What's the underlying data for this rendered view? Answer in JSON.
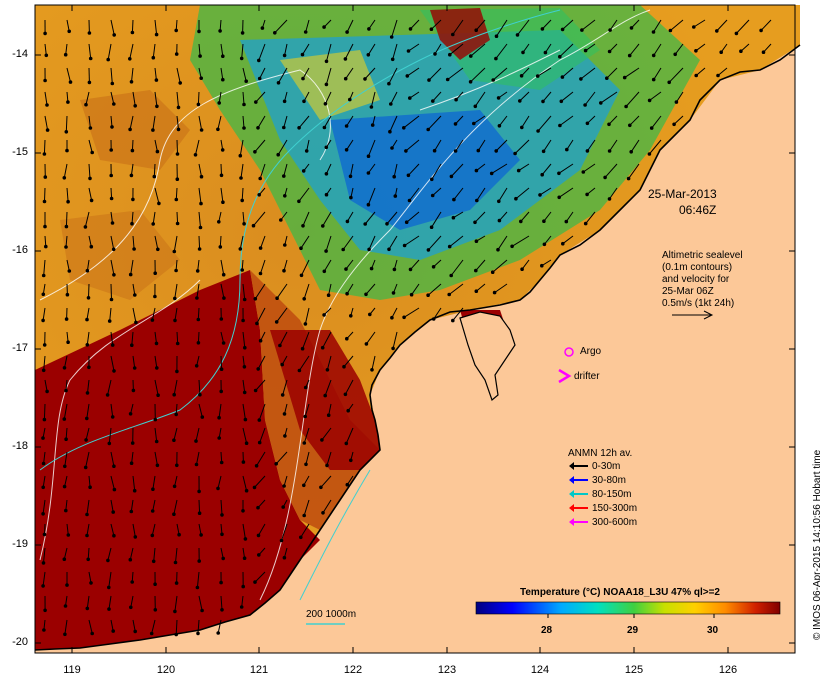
{
  "map": {
    "date": "25-Mar-2013",
    "time": "06:46Z",
    "altimetry_lines": [
      "Altimetric sealevel",
      "(0.1m contours)",
      "and velocity for",
      "25-Mar 06Z",
      "0.5m/s (1kt 24h)"
    ],
    "argo_label": "Argo",
    "drifter_label": "drifter",
    "anmn_title": "ANMN 12h av.",
    "anmn_items": [
      {
        "label": "0-30m",
        "color": "#000000"
      },
      {
        "label": "30-80m",
        "color": "#0000ff"
      },
      {
        "label": "80-150m",
        "color": "#00c8c8"
      },
      {
        "label": "150-300m",
        "color": "#ff0000"
      },
      {
        "label": "300-600m",
        "color": "#ff00ff"
      }
    ],
    "depth_contours_label": "200  1000m",
    "colorbar_title": "Temperature (°C) NOAA18_L3U 47% ql>=2",
    "colorbar_ticks": [
      "28",
      "29",
      "30"
    ],
    "credit": "© IMOS 06-Apr-2015 14:10:56 Hobart time",
    "y_ticks": [
      "-14",
      "-15",
      "-16",
      "-17",
      "-18",
      "-19",
      "-20"
    ],
    "x_ticks": [
      "119",
      "120",
      "121",
      "122",
      "123",
      "124",
      "125",
      "126"
    ],
    "colors": {
      "land": "#fcc898",
      "hot": "#9b0000",
      "coast": "#000000"
    }
  }
}
